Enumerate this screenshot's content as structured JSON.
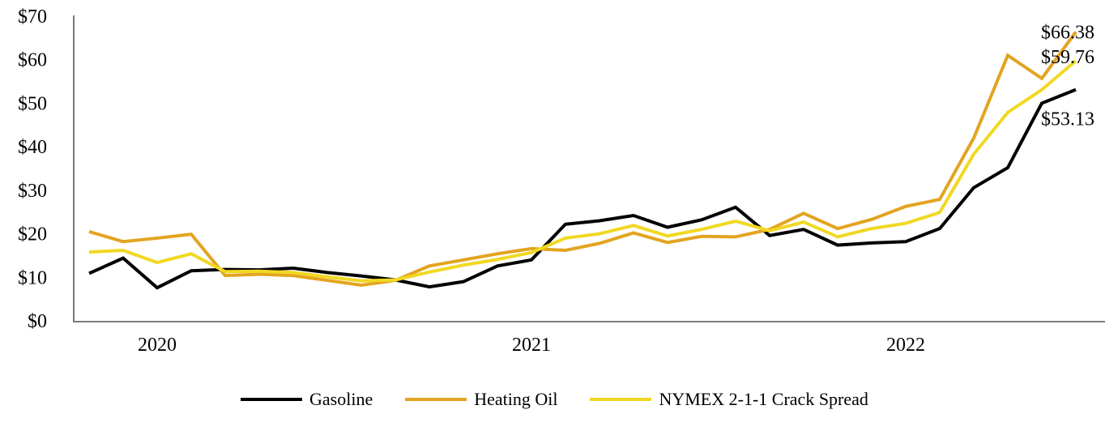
{
  "chart_data": {
    "type": "line",
    "title": "",
    "xlabel": "",
    "ylabel": "",
    "ylim": [
      0,
      70
    ],
    "grid": false,
    "y_axis": {
      "prefix": "$",
      "tick_step": 10,
      "tick_labels": [
        "$0",
        "$10",
        "$20",
        "$30",
        "$40",
        "$50",
        "$60",
        "$70"
      ]
    },
    "x_axis": {
      "year_labels": [
        {
          "label": "2020",
          "point_index": 2
        },
        {
          "label": "2021",
          "point_index": 13
        },
        {
          "label": "2022",
          "point_index": 24
        }
      ]
    },
    "legend": {
      "position": "bottom",
      "entries": [
        "Gasoline",
        "Heating Oil",
        "NYMEX 2-1-1 Crack Spread"
      ]
    },
    "series": [
      {
        "name": "Gasoline",
        "color": "#000000",
        "end_label": "$53.13",
        "values": [
          10.9,
          14.4,
          7.6,
          11.5,
          11.8,
          11.7,
          12.1,
          11.1,
          10.3,
          9.4,
          7.8,
          9.0,
          12.6,
          14.0,
          22.2,
          23.0,
          24.2,
          21.5,
          23.2,
          26.1,
          19.6,
          21.0,
          17.4,
          17.9,
          18.2,
          21.2,
          30.6,
          35.2,
          50.0,
          53.13
        ]
      },
      {
        "name": "Heating Oil",
        "color": "#E3A420",
        "end_label": "$66.38",
        "values": [
          20.5,
          18.2,
          19.0,
          19.9,
          10.4,
          10.7,
          10.4,
          9.3,
          8.2,
          9.3,
          12.6,
          14.0,
          15.4,
          16.6,
          16.2,
          17.8,
          20.2,
          18.0,
          19.4,
          19.3,
          21.0,
          24.7,
          21.2,
          23.3,
          26.3,
          27.9,
          42.0,
          61.0,
          55.7,
          66.38
        ]
      },
      {
        "name": "NYMEX 2-1-1 Crack Spread",
        "color": "#F1D822",
        "end_label": "$59.76",
        "values": [
          15.8,
          16.2,
          13.4,
          15.4,
          11.3,
          11.4,
          11.1,
          10.1,
          9.2,
          9.4,
          11.2,
          12.8,
          14.1,
          15.7,
          19.0,
          20.0,
          21.9,
          19.5,
          21.0,
          22.9,
          20.7,
          22.7,
          19.3,
          21.2,
          22.4,
          24.9,
          38.3,
          47.9,
          53.1,
          59.76
        ]
      }
    ]
  }
}
